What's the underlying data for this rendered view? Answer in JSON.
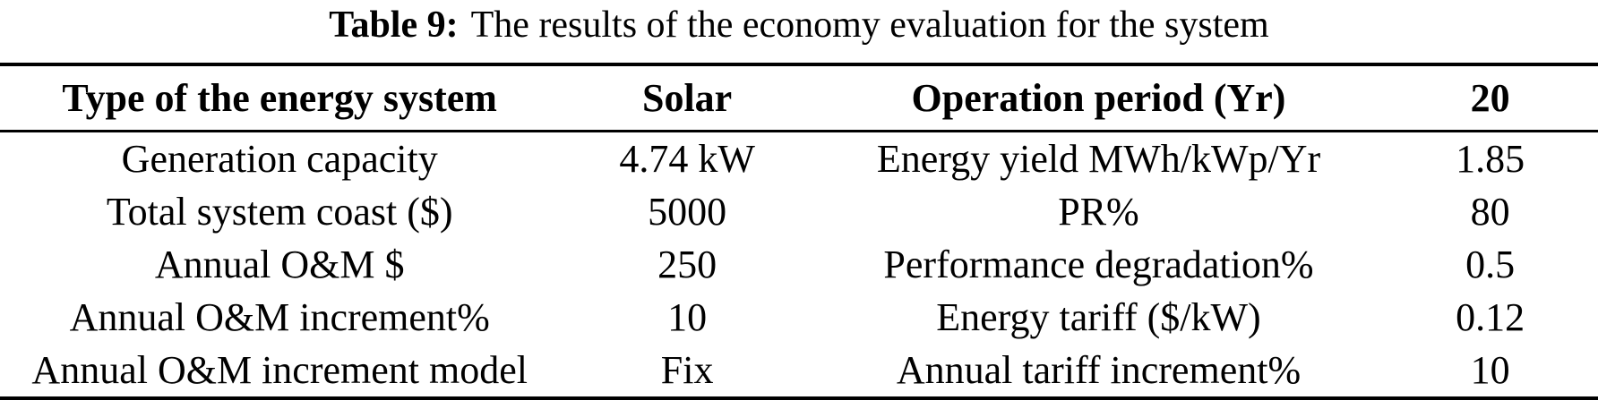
{
  "title": {
    "label": "Table 9:",
    "text": "The results of the economy evaluation for the system"
  },
  "table": {
    "header": [
      "Type of the energy system",
      "Solar",
      "Operation period (Yr)",
      "20"
    ],
    "rows": [
      [
        "Generation capacity",
        "4.74 kW",
        "Energy yield MWh/kWp/Yr",
        "1.85"
      ],
      [
        "Total system coast ($)",
        "5000",
        "PR%",
        "80"
      ],
      [
        "Annual O&M $",
        "250",
        "Performance degradation%",
        "0.5"
      ],
      [
        "Annual O&M increment%",
        "10",
        "Energy tariff ($/kW)",
        "0.12"
      ],
      [
        "Annual O&M increment model",
        "Fix",
        "Annual tariff increment%",
        "10"
      ]
    ]
  },
  "colors": {
    "text": "#000000",
    "background": "#ffffff",
    "rule": "#000000"
  }
}
